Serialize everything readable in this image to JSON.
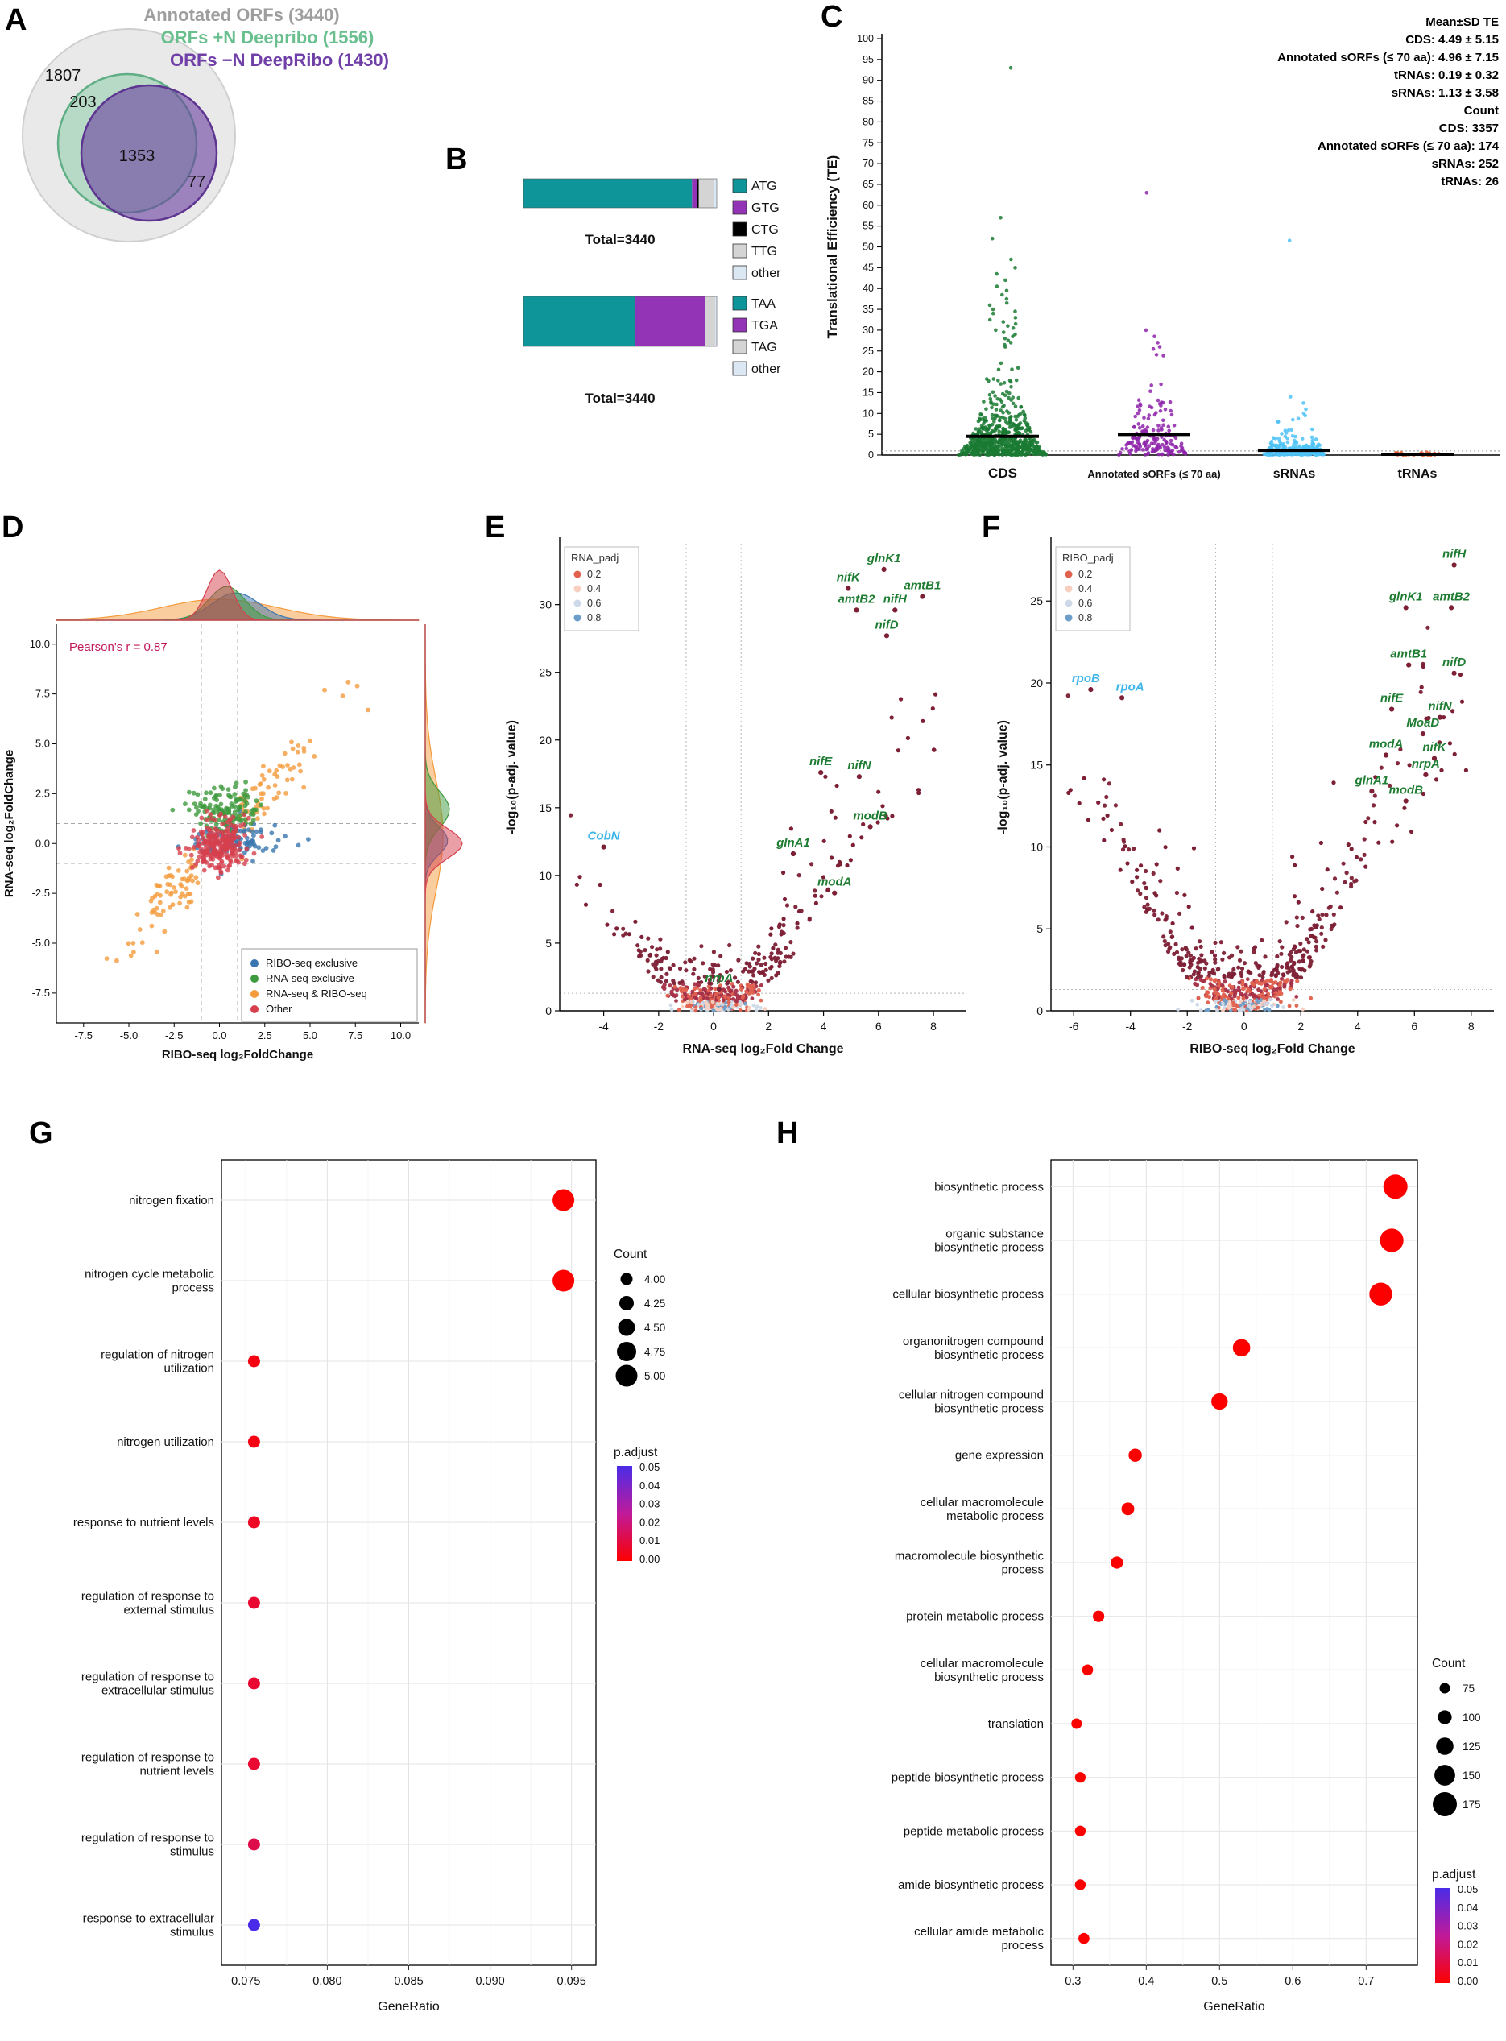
{
  "letters": {
    "A": "A",
    "B": "B",
    "C": "C",
    "D": "D",
    "E": "E",
    "F": "F",
    "G": "G",
    "H": "H"
  },
  "colors": {
    "teal": "#0e9599",
    "purple": "#9333b5",
    "black": "#000000",
    "lightgray": "#d4d4d4",
    "paleblue": "#dbe7f3",
    "venn_gray_fill": "#e9e9e9",
    "venn_gray_stroke": "#cfcfcf",
    "venn_green": "#5fae84",
    "venn_green_fill": "rgba(122,199,158,0.45)",
    "venn_purple": "#5d3590",
    "venn_purple_fill": "rgba(106,63,160,0.60)",
    "cds_green": "#1a7a33",
    "sorf_purple": "#8e24aa",
    "srna_blue": "#4fc3f7",
    "trna_orange": "#e65c2e",
    "maroon": "#7d1f35",
    "gene_green": "#1e7d32",
    "gene_cyan": "#3db5e8",
    "pearson_pink": "#c2185b",
    "d_blue": "#3976af",
    "d_green": "#3d9a3d",
    "d_orange": "#f49b3c",
    "d_red": "#d6404e"
  },
  "chart_data": [
    {
      "id": "A",
      "type": "venn",
      "titles": [
        {
          "text": "Annotated ORFs (3440)",
          "color": "#9e9e9e"
        },
        {
          "text": "ORFs +N Deepribo (1556)",
          "color": "#6abf8f"
        },
        {
          "text": "ORFs −N DeepRibo (1430)",
          "color": "#7040a8"
        }
      ],
      "regions": [
        {
          "label": "1807",
          "x": 78,
          "y": 100
        },
        {
          "label": "203",
          "x": 103,
          "y": 133
        },
        {
          "label": "1353",
          "x": 170,
          "y": 200
        },
        {
          "label": "77",
          "x": 244,
          "y": 232
        }
      ]
    },
    {
      "id": "B",
      "type": "stacked-bar",
      "charts": [
        {
          "total_label": "Total=3440",
          "segments": [
            {
              "label": "ATG",
              "frac": 0.872,
              "color": "#0e9599"
            },
            {
              "label": "GTG",
              "frac": 0.027,
              "color": "#9333b5"
            },
            {
              "label": "CTG",
              "frac": 0.008,
              "color": "#000000"
            },
            {
              "label": "TTG",
              "frac": 0.078,
              "color": "#d4d4d4"
            },
            {
              "label": "other",
              "frac": 0.015,
              "color": "#dbe7f3"
            }
          ]
        },
        {
          "total_label": "Total=3440",
          "segments": [
            {
              "label": "TAA",
              "frac": 0.575,
              "color": "#0e9599"
            },
            {
              "label": "TGA",
              "frac": 0.365,
              "color": "#9333b5"
            },
            {
              "label": "TAG",
              "frac": 0.052,
              "color": "#d4d4d4"
            },
            {
              "label": "other",
              "frac": 0.008,
              "color": "#dbe7f3"
            }
          ]
        }
      ]
    },
    {
      "id": "C",
      "type": "strip",
      "y_label": "Translational Efficiency (TE)",
      "y_axis": {
        "min": 0,
        "max": 100,
        "step": 5
      },
      "groups": [
        {
          "name": "CDS",
          "color": "#1a7a33",
          "mean": 4.49,
          "n": 600,
          "jitter": 55,
          "tail": 4.3,
          "label_size": 17,
          "outliers": [
            93,
            57,
            52,
            47,
            45,
            43.5,
            42,
            40.5,
            39.5,
            38.5,
            37.5,
            36.5,
            36,
            35,
            34.5,
            34,
            33,
            32.5,
            32,
            31.5,
            31,
            30.5,
            30,
            29.5,
            29,
            28.5,
            28,
            27.5,
            27,
            26.5,
            26
          ]
        },
        {
          "name": "Annotated sORFs (≤ 70 aa)",
          "color": "#8e24aa",
          "mean": 4.96,
          "n": 166,
          "jitter": 45,
          "tail": 4.6,
          "label_size": 13,
          "outliers": [
            63,
            30,
            28.5,
            27,
            26,
            25.5
          ]
        },
        {
          "name": "sRNAs",
          "color": "#4fc3f7",
          "mean": 1.13,
          "n": 244,
          "jitter": 38,
          "tail": 1.5,
          "label_size": 16,
          "outliers": [
            51.5,
            14,
            12.5,
            11,
            10,
            9.5,
            8.5,
            8
          ]
        },
        {
          "name": "tRNAs",
          "color": "#e65c2e",
          "mean": 0.19,
          "n": 26,
          "jitter": 30,
          "tail": 0.22,
          "label_size": 16,
          "outliers": []
        }
      ],
      "stats_lines": [
        {
          "text": "Mean±SD TE",
          "bold": true
        },
        {
          "text": "CDS: 4.49 ± 5.15"
        },
        {
          "text": "Annotated sORFs (≤ 70 aa): 4.96 ± 7.15"
        },
        {
          "text": "tRNAs: 0.19 ± 0.32"
        },
        {
          "text": "sRNAs: 1.13 ± 3.58"
        },
        {
          "text": "Count",
          "bold": true
        },
        {
          "text": "CDS: 3357"
        },
        {
          "text": "Annotated sORFs (≤ 70 aa): 174"
        },
        {
          "text": "sRNAs: 252"
        },
        {
          "text": "tRNAs: 26"
        }
      ]
    },
    {
      "id": "D",
      "type": "scatter-marginal",
      "pearson": "Pearson's r = 0.87",
      "x_label": "RIBO-seq log₂FoldChange",
      "y_label": "RNA-seq log₂FoldChange",
      "ticks": [
        -7.5,
        -5.0,
        -2.5,
        0.0,
        2.5,
        5.0,
        7.5,
        10.0
      ],
      "tick_labels": [
        "-7.5",
        "-5.0",
        "-2.5",
        "0.0",
        "2.5",
        "5.0",
        "7.5",
        "10.0"
      ],
      "legend": [
        {
          "label": "RIBO-seq exclusive",
          "color": "#3976af"
        },
        {
          "label": "RNA-seq exclusive",
          "color": "#3d9a3d"
        },
        {
          "label": "RNA-seq & RIBO-seq",
          "color": "#f49b3c"
        },
        {
          "label": "Other",
          "color": "#d6404e"
        }
      ],
      "top_density": [
        {
          "color": "#f49b3c",
          "c": 0,
          "sd": 3.2,
          "h": 26
        },
        {
          "color": "#3976af",
          "c": 0.9,
          "sd": 1.3,
          "h": 34
        },
        {
          "color": "#3d9a3d",
          "c": 0.4,
          "sd": 1.0,
          "h": 42
        },
        {
          "color": "#d6404e",
          "c": 0,
          "sd": 0.7,
          "h": 62
        }
      ],
      "right_density": [
        {
          "color": "#f49b3c",
          "c": 0.4,
          "sd": 2.8,
          "h": 22
        },
        {
          "color": "#3976af",
          "c": 0.15,
          "sd": 0.7,
          "h": 28
        },
        {
          "color": "#3d9a3d",
          "c": 1.7,
          "sd": 0.9,
          "h": 30
        },
        {
          "color": "#d6404e",
          "c": 0,
          "sd": 0.75,
          "h": 46
        }
      ]
    },
    {
      "id": "E",
      "type": "volcano",
      "legend_title": "RNA_padj",
      "legend_items": [
        {
          "label": "0.2",
          "color": "#e0614e"
        },
        {
          "label": "0.4",
          "color": "#f7cfc0"
        },
        {
          "label": "0.6",
          "color": "#cdd9e8"
        },
        {
          "label": "0.8",
          "color": "#6d9ec9"
        }
      ],
      "x_label": "RNA-seq log₂Fold Change",
      "y_label": "-log₁₀(p-adj. value)",
      "x_ticks": [
        -4,
        -2,
        0,
        2,
        4,
        6,
        8
      ],
      "y_ticks": [
        0,
        5,
        10,
        15,
        20,
        25,
        30
      ],
      "x_domain": [
        -5.6,
        9.2
      ],
      "y_domain": [
        0,
        34.5
      ],
      "guides": {
        "x": [
          -1,
          1
        ],
        "y": 1.3
      },
      "gen": {
        "seed": 11,
        "x_sd": 1.5,
        "parab": 0.5,
        "n_core": 300,
        "n_low": 170,
        "n_right": 48,
        "n_left": 12,
        "slope_r": 2.1,
        "slope_l": 1.9
      },
      "genes": [
        {
          "name": "glnK1",
          "x": 6.2,
          "y": 32.6
        },
        {
          "name": "nifK",
          "x": 4.9,
          "y": 31.2
        },
        {
          "name": "amtB1",
          "x": 7.6,
          "y": 30.6
        },
        {
          "name": "amtB2",
          "x": 5.2,
          "y": 29.6
        },
        {
          "name": "nifH",
          "x": 6.6,
          "y": 29.6
        },
        {
          "name": "nifD",
          "x": 6.3,
          "y": 27.7
        },
        {
          "name": "nifE",
          "x": 3.9,
          "y": 17.6
        },
        {
          "name": "nifN",
          "x": 5.3,
          "y": 17.3
        },
        {
          "name": "modB",
          "x": 5.7,
          "y": 13.6
        },
        {
          "name": "glnA1",
          "x": 2.9,
          "y": 11.6
        },
        {
          "name": "modA",
          "x": 4.4,
          "y": 8.7
        },
        {
          "name": "nrpA",
          "x": 0.2,
          "y": 1.6
        },
        {
          "name": "CobN",
          "x": -4.0,
          "y": 12.1,
          "color": "cyan"
        }
      ]
    },
    {
      "id": "F",
      "type": "volcano",
      "legend_title": "RIBO_padj",
      "legend_items": [
        {
          "label": "0.2",
          "color": "#e0614e"
        },
        {
          "label": "0.4",
          "color": "#f7cfc0"
        },
        {
          "label": "0.6",
          "color": "#cdd9e8"
        },
        {
          "label": "0.8",
          "color": "#6d9ec9"
        }
      ],
      "x_label": "RIBO-seq log₂Fold Change",
      "y_label": "-log₁₀(p-adj. value)",
      "x_ticks": [
        -6,
        -4,
        -2,
        0,
        2,
        4,
        6,
        8
      ],
      "y_ticks": [
        0,
        5,
        10,
        15,
        20,
        25
      ],
      "x_domain": [
        -6.8,
        8.8
      ],
      "y_domain": [
        0,
        28.5
      ],
      "guides": {
        "x": [
          -1,
          1
        ],
        "y": 1.3
      },
      "gen": {
        "seed": 23,
        "x_sd": 1.9,
        "parab": 0.5,
        "n_core": 420,
        "n_low": 160,
        "n_right": 42,
        "n_left": 30,
        "slope_r": 1.8,
        "slope_l": 2.4
      },
      "genes": [
        {
          "name": "nifH",
          "x": 7.4,
          "y": 27.2
        },
        {
          "name": "glnK1",
          "x": 5.7,
          "y": 24.6
        },
        {
          "name": "amtB2",
          "x": 7.3,
          "y": 24.6
        },
        {
          "name": "amtB1",
          "x": 5.8,
          "y": 21.1
        },
        {
          "name": "nifD",
          "x": 7.4,
          "y": 20.6
        },
        {
          "name": "nifE",
          "x": 5.2,
          "y": 18.4
        },
        {
          "name": "nifN",
          "x": 6.9,
          "y": 17.9
        },
        {
          "name": "MoaD",
          "x": 6.3,
          "y": 16.9
        },
        {
          "name": "modA",
          "x": 5.0,
          "y": 15.6
        },
        {
          "name": "nifK",
          "x": 6.7,
          "y": 15.4
        },
        {
          "name": "nrpA",
          "x": 6.4,
          "y": 14.4
        },
        {
          "name": "glnA1",
          "x": 4.5,
          "y": 13.4
        },
        {
          "name": "modB",
          "x": 5.7,
          "y": 12.8
        },
        {
          "name": "rpoB",
          "x": -5.4,
          "y": 19.6,
          "color": "cyan",
          "dx": -6
        },
        {
          "name": "rpoA",
          "x": -4.3,
          "y": 19.1,
          "color": "cyan",
          "dx": 10
        }
      ]
    },
    {
      "id": "G",
      "type": "dotplot",
      "x_label": "GeneRatio",
      "x_ticks": [
        0.075,
        0.08,
        0.085,
        0.09,
        0.095
      ],
      "x_tick_labels": [
        "0.075",
        "0.080",
        "0.085",
        "0.090",
        "0.095"
      ],
      "x_domain": [
        0.0735,
        0.0965
      ],
      "r_map": {
        "c0": 4,
        "r0": 7.5,
        "c1": 5,
        "r1": 13.5
      },
      "count_legend": {
        "title": "Count",
        "values": [
          "4.00",
          "4.25",
          "4.50",
          "4.75",
          "5.00"
        ],
        "counts": [
          4,
          4.25,
          4.5,
          4.75,
          5
        ]
      },
      "padj_legend": {
        "title": "p.adjust",
        "labels": [
          "0.05",
          "0.04",
          "0.03",
          "0.02",
          "0.01",
          "0.00"
        ]
      },
      "rows": [
        {
          "lines": [
            "nitrogen fixation"
          ],
          "x": 0.0945,
          "count": 5,
          "p": 0.0
        },
        {
          "lines": [
            "nitrogen cycle metabolic",
            "process"
          ],
          "x": 0.0945,
          "count": 5,
          "p": 0.0
        },
        {
          "lines": [
            "regulation of nitrogen",
            "utilization"
          ],
          "x": 0.0755,
          "count": 4,
          "p": 0.003
        },
        {
          "lines": [
            "nitrogen utilization"
          ],
          "x": 0.0755,
          "count": 4,
          "p": 0.003
        },
        {
          "lines": [
            "response to nutrient levels"
          ],
          "x": 0.0755,
          "count": 4,
          "p": 0.006
        },
        {
          "lines": [
            "regulation of response to",
            "external stimulus"
          ],
          "x": 0.0755,
          "count": 4,
          "p": 0.008
        },
        {
          "lines": [
            "regulation of response to",
            "extracellular stimulus"
          ],
          "x": 0.0755,
          "count": 4,
          "p": 0.008
        },
        {
          "lines": [
            "regulation of response to",
            "nutrient levels"
          ],
          "x": 0.0755,
          "count": 4,
          "p": 0.008
        },
        {
          "lines": [
            "regulation of response to",
            "stimulus"
          ],
          "x": 0.0755,
          "count": 4,
          "p": 0.012
        },
        {
          "lines": [
            "response to extracellular",
            "stimulus"
          ],
          "x": 0.0755,
          "count": 4,
          "p": 0.05
        }
      ]
    },
    {
      "id": "H",
      "type": "dotplot",
      "x_label": "GeneRatio",
      "x_ticks": [
        0.3,
        0.4,
        0.5,
        0.6,
        0.7
      ],
      "x_tick_labels": [
        "0.3",
        "0.4",
        "0.5",
        "0.6",
        "0.7"
      ],
      "x_domain": [
        0.27,
        0.77
      ],
      "r_map": {
        "c0": 75,
        "r0": 6.5,
        "c1": 175,
        "r1": 15
      },
      "count_legend": {
        "title": "Count",
        "values": [
          "75",
          "100",
          "125",
          "150",
          "175"
        ],
        "counts": [
          75,
          100,
          125,
          150,
          175
        ]
      },
      "padj_legend": {
        "title": "p.adjust",
        "labels": [
          "0.05",
          "0.04",
          "0.03",
          "0.02",
          "0.01",
          "0.00"
        ]
      },
      "rows": [
        {
          "lines": [
            "biosynthetic process"
          ],
          "x": 0.74,
          "count": 175,
          "p": 0.0
        },
        {
          "lines": [
            "organic substance",
            "biosynthetic process"
          ],
          "x": 0.735,
          "count": 170,
          "p": 0.0
        },
        {
          "lines": [
            "cellular biosynthetic process"
          ],
          "x": 0.72,
          "count": 165,
          "p": 0.0
        },
        {
          "lines": [
            "organonitrogen compound",
            "biosynthetic process"
          ],
          "x": 0.53,
          "count": 125,
          "p": 0.0
        },
        {
          "lines": [
            "cellular nitrogen compound",
            "biosynthetic process"
          ],
          "x": 0.5,
          "count": 118,
          "p": 0.0
        },
        {
          "lines": [
            "gene expression"
          ],
          "x": 0.385,
          "count": 95,
          "p": 0.0
        },
        {
          "lines": [
            "cellular macromolecule",
            "metabolic process"
          ],
          "x": 0.375,
          "count": 92,
          "p": 0.0
        },
        {
          "lines": [
            "macromolecule biosynthetic",
            "process"
          ],
          "x": 0.36,
          "count": 88,
          "p": 0.0
        },
        {
          "lines": [
            "protein metabolic process"
          ],
          "x": 0.335,
          "count": 82,
          "p": 0.0
        },
        {
          "lines": [
            "cellular macromolecule",
            "biosynthetic process"
          ],
          "x": 0.32,
          "count": 78,
          "p": 0.0
        },
        {
          "lines": [
            "translation"
          ],
          "x": 0.305,
          "count": 75,
          "p": 0.0
        },
        {
          "lines": [
            "peptide biosynthetic process"
          ],
          "x": 0.31,
          "count": 76,
          "p": 0.0
        },
        {
          "lines": [
            "peptide metabolic process"
          ],
          "x": 0.31,
          "count": 77,
          "p": 0.0
        },
        {
          "lines": [
            "amide biosynthetic process"
          ],
          "x": 0.31,
          "count": 77,
          "p": 0.0
        },
        {
          "lines": [
            "cellular amide metabolic",
            "process"
          ],
          "x": 0.315,
          "count": 78,
          "p": 0.0
        }
      ]
    }
  ]
}
